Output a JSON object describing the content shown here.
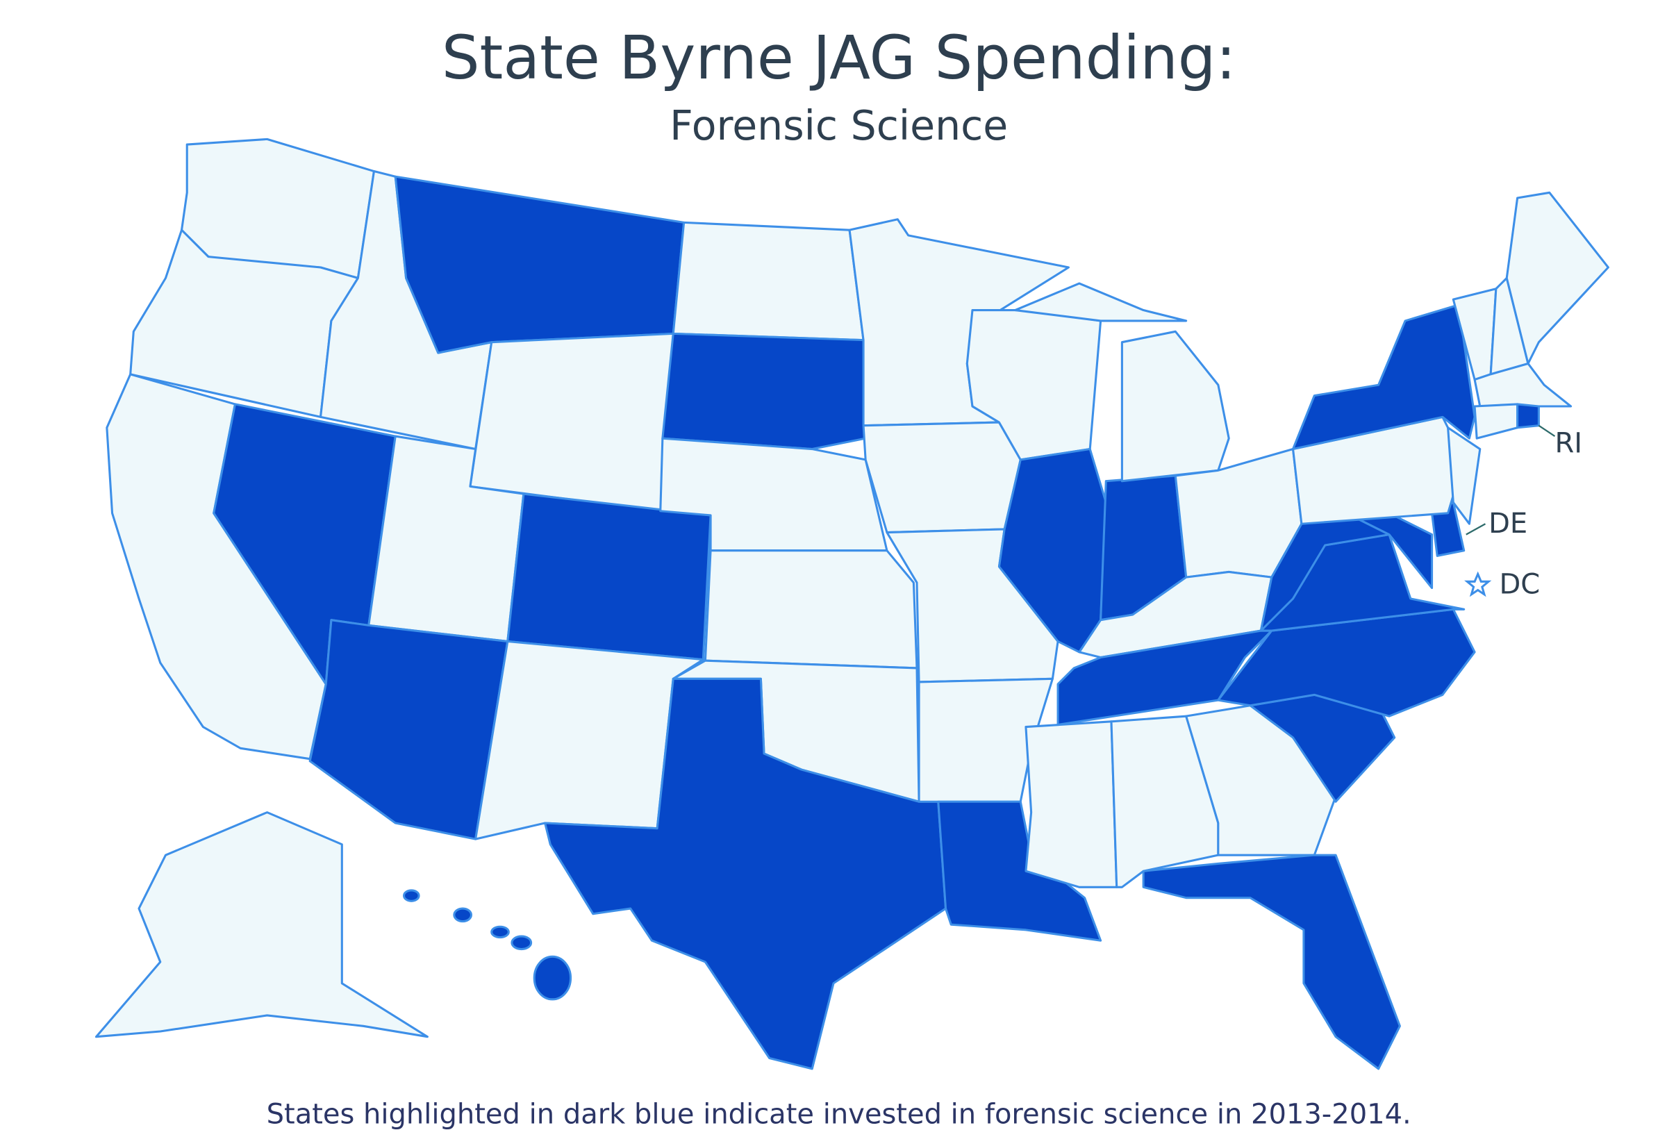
{
  "header": {
    "title": "State Byrne JAG Spending:",
    "subtitle": "Forensic Science"
  },
  "labels": {
    "ri": "RI",
    "de": "DE",
    "dc": "DC"
  },
  "caption": "States highlighted in dark blue indicate invested in forensic science in 2013-2014."
}
